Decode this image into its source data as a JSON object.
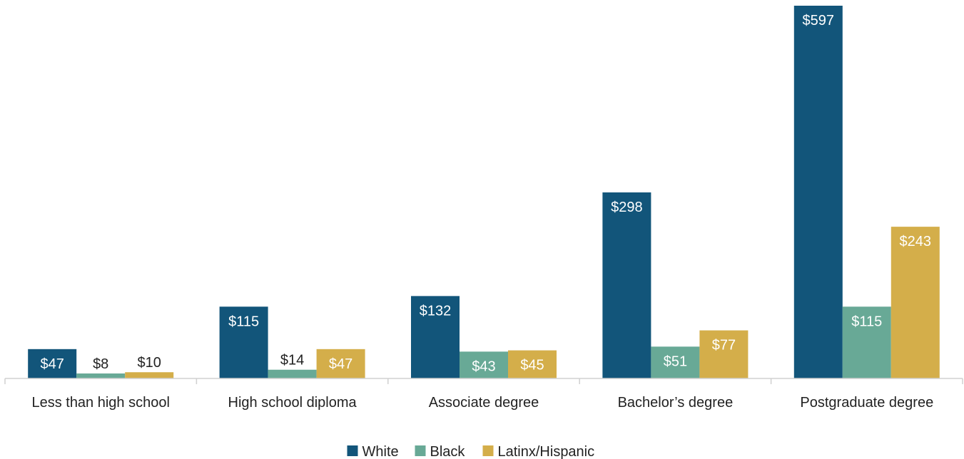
{
  "chart_data": {
    "type": "bar",
    "title": "",
    "xlabel": "",
    "ylabel": "",
    "categories": [
      "Less than high school",
      "High school diploma",
      "Associate degree",
      "Bachelor’s degree",
      "Postgraduate degree"
    ],
    "series": [
      {
        "name": "White",
        "color": "#12557a",
        "values": [
          47,
          115,
          132,
          298,
          597
        ],
        "labels": [
          "$47",
          "$115",
          "$132",
          "$298",
          "$597"
        ]
      },
      {
        "name": "Black",
        "color": "#68a996",
        "values": [
          8,
          14,
          43,
          51,
          115
        ],
        "labels": [
          "$8",
          "$14",
          "$43",
          "$51",
          "$115"
        ]
      },
      {
        "name": "Latinx/Hispanic",
        "color": "#d4ae4a",
        "values": [
          10,
          47,
          45,
          77,
          243
        ],
        "labels": [
          "$10",
          "$47",
          "$45",
          "$77",
          "$243"
        ]
      }
    ],
    "ylim": [
      0,
      600
    ],
    "grid": false,
    "legend_position": "bottom"
  }
}
